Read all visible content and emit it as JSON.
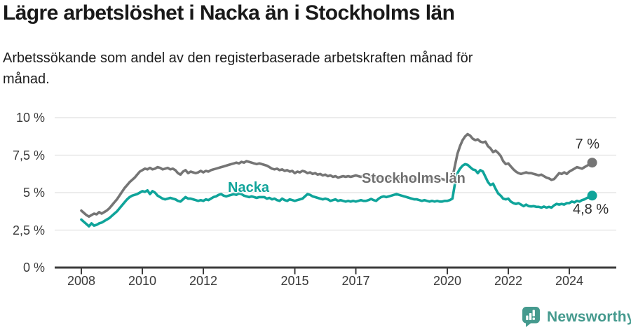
{
  "header": {
    "title": "Lägre arbetslöshet i Nacka än i Stockholms län",
    "subtitle": "Arbetssökande som andel av den registerbaserade arbetskraften månad för\nmånad."
  },
  "footer": {
    "brand": "Newsworthy"
  },
  "chart_data": {
    "type": "line",
    "title": "Lägre arbetslöshet i Nacka än i Stockholms län",
    "subtitle": "Arbetssökande som andel av den registerbaserade arbetskraften månad för månad.",
    "unit": "%",
    "grid": true,
    "legend": "inline-labels",
    "x_start": 2008.0,
    "x_end": 2024.75,
    "x_step_months": 1,
    "ylim": [
      0,
      10
    ],
    "yticks": [
      {
        "value": 0,
        "label": "0 %"
      },
      {
        "value": 2.5,
        "label": "2,5 %"
      },
      {
        "value": 5,
        "label": "5 %"
      },
      {
        "value": 7.5,
        "label": "7,5 %"
      },
      {
        "value": 10,
        "label": "10 %"
      }
    ],
    "xticks": [
      {
        "value": 2008,
        "label": "2008"
      },
      {
        "value": 2010,
        "label": "2010"
      },
      {
        "value": 2012,
        "label": "2012"
      },
      {
        "value": 2015,
        "label": "2015"
      },
      {
        "value": 2017,
        "label": "2017"
      },
      {
        "value": 2020,
        "label": "2020"
      },
      {
        "value": 2022,
        "label": "2022"
      },
      {
        "value": 2024,
        "label": "2024"
      }
    ],
    "series": [
      {
        "key": "stockholm",
        "name": "Stockholms län",
        "color": "#757575",
        "end_label": "7 %",
        "values": [
          3.8,
          3.65,
          3.5,
          3.4,
          3.5,
          3.6,
          3.55,
          3.7,
          3.6,
          3.7,
          3.8,
          3.95,
          4.15,
          4.35,
          4.55,
          4.8,
          5.05,
          5.3,
          5.5,
          5.7,
          5.85,
          6.0,
          6.2,
          6.4,
          6.5,
          6.6,
          6.55,
          6.65,
          6.55,
          6.6,
          6.7,
          6.65,
          6.55,
          6.6,
          6.65,
          6.55,
          6.6,
          6.5,
          6.3,
          6.2,
          6.4,
          6.5,
          6.3,
          6.4,
          6.35,
          6.3,
          6.35,
          6.45,
          6.35,
          6.45,
          6.4,
          6.5,
          6.55,
          6.6,
          6.65,
          6.7,
          6.75,
          6.8,
          6.85,
          6.9,
          6.95,
          7.0,
          6.95,
          7.05,
          7.0,
          7.1,
          7.05,
          7.0,
          6.95,
          6.9,
          6.95,
          6.9,
          6.85,
          6.8,
          6.7,
          6.6,
          6.55,
          6.6,
          6.5,
          6.55,
          6.45,
          6.5,
          6.4,
          6.45,
          6.3,
          6.4,
          6.35,
          6.45,
          6.4,
          6.3,
          6.35,
          6.25,
          6.3,
          6.2,
          6.25,
          6.15,
          6.2,
          6.1,
          6.15,
          6.05,
          6.1,
          6.0,
          6.05,
          6.1,
          6.05,
          6.1,
          6.05,
          6.1,
          6.15,
          6.1,
          6.05,
          6.1,
          6.05,
          6.0,
          6.05,
          6.0,
          6.05,
          6.0,
          6.05,
          6.0,
          6.0,
          5.95,
          6.0,
          5.95,
          5.9,
          5.95,
          5.9,
          5.85,
          5.9,
          5.85,
          5.9,
          5.85,
          5.8,
          5.85,
          5.8,
          5.85,
          5.9,
          5.85,
          5.9,
          5.95,
          5.9,
          5.95,
          5.9,
          5.85,
          5.8,
          5.85,
          6.0,
          6.8,
          7.6,
          8.1,
          8.5,
          8.75,
          8.9,
          8.8,
          8.6,
          8.5,
          8.55,
          8.4,
          8.35,
          8.4,
          8.1,
          7.95,
          7.7,
          7.8,
          7.65,
          7.45,
          7.1,
          6.9,
          6.95,
          6.75,
          6.55,
          6.4,
          6.3,
          6.25,
          6.3,
          6.35,
          6.3,
          6.3,
          6.25,
          6.2,
          6.15,
          6.2,
          6.1,
          6.0,
          5.95,
          5.85,
          5.9,
          6.1,
          6.3,
          6.25,
          6.35,
          6.25,
          6.4,
          6.5,
          6.6,
          6.7,
          6.65,
          6.6,
          6.7,
          6.8,
          6.9,
          7.0
        ]
      },
      {
        "key": "nacka",
        "name": "Nacka",
        "color": "#0fa49a",
        "end_label": "4,8 %",
        "values": [
          3.2,
          3.05,
          2.9,
          2.75,
          2.95,
          2.8,
          2.85,
          2.95,
          3.0,
          3.1,
          3.2,
          3.3,
          3.45,
          3.6,
          3.75,
          3.95,
          4.15,
          4.35,
          4.55,
          4.7,
          4.8,
          4.85,
          4.9,
          5.0,
          5.1,
          5.05,
          5.15,
          4.9,
          5.1,
          5.0,
          4.8,
          4.7,
          4.6,
          4.55,
          4.6,
          4.65,
          4.6,
          4.55,
          4.45,
          4.4,
          4.55,
          4.7,
          4.6,
          4.6,
          4.55,
          4.5,
          4.45,
          4.5,
          4.45,
          4.55,
          4.5,
          4.6,
          4.7,
          4.75,
          4.85,
          4.9,
          4.8,
          4.75,
          4.8,
          4.85,
          4.9,
          4.85,
          4.95,
          4.9,
          4.8,
          4.75,
          4.7,
          4.75,
          4.7,
          4.65,
          4.7,
          4.7,
          4.7,
          4.6,
          4.65,
          4.55,
          4.6,
          4.5,
          4.45,
          4.6,
          4.5,
          4.45,
          4.55,
          4.5,
          4.45,
          4.5,
          4.55,
          4.6,
          4.75,
          4.9,
          4.85,
          4.75,
          4.7,
          4.65,
          4.6,
          4.55,
          4.6,
          4.55,
          4.45,
          4.5,
          4.55,
          4.45,
          4.5,
          4.45,
          4.4,
          4.45,
          4.4,
          4.45,
          4.4,
          4.45,
          4.5,
          4.45,
          4.45,
          4.5,
          4.58,
          4.5,
          4.45,
          4.6,
          4.7,
          4.75,
          4.7,
          4.75,
          4.8,
          4.85,
          4.9,
          4.85,
          4.8,
          4.75,
          4.7,
          4.65,
          4.6,
          4.55,
          4.55,
          4.5,
          4.45,
          4.5,
          4.45,
          4.4,
          4.45,
          4.4,
          4.45,
          4.4,
          4.4,
          4.45,
          4.45,
          4.5,
          4.6,
          5.6,
          6.3,
          6.6,
          6.8,
          6.9,
          6.85,
          6.7,
          6.55,
          6.5,
          6.3,
          6.5,
          6.4,
          6.05,
          5.7,
          5.5,
          5.6,
          5.25,
          4.95,
          4.8,
          4.6,
          4.55,
          4.6,
          4.4,
          4.3,
          4.25,
          4.3,
          4.2,
          4.1,
          4.2,
          4.1,
          4.08,
          4.1,
          4.05,
          4.05,
          4.0,
          4.07,
          4.0,
          4.05,
          4.0,
          4.15,
          4.25,
          4.2,
          4.25,
          4.2,
          4.3,
          4.3,
          4.4,
          4.35,
          4.45,
          4.4,
          4.5,
          4.55,
          4.65,
          4.7,
          4.8
        ]
      }
    ],
    "colors": {
      "nacka": "#0fa49a",
      "stockholm": "#757575",
      "gridline": "#e1e1e1",
      "axis": "#3c3c3c",
      "brand": "#459a8e"
    }
  }
}
